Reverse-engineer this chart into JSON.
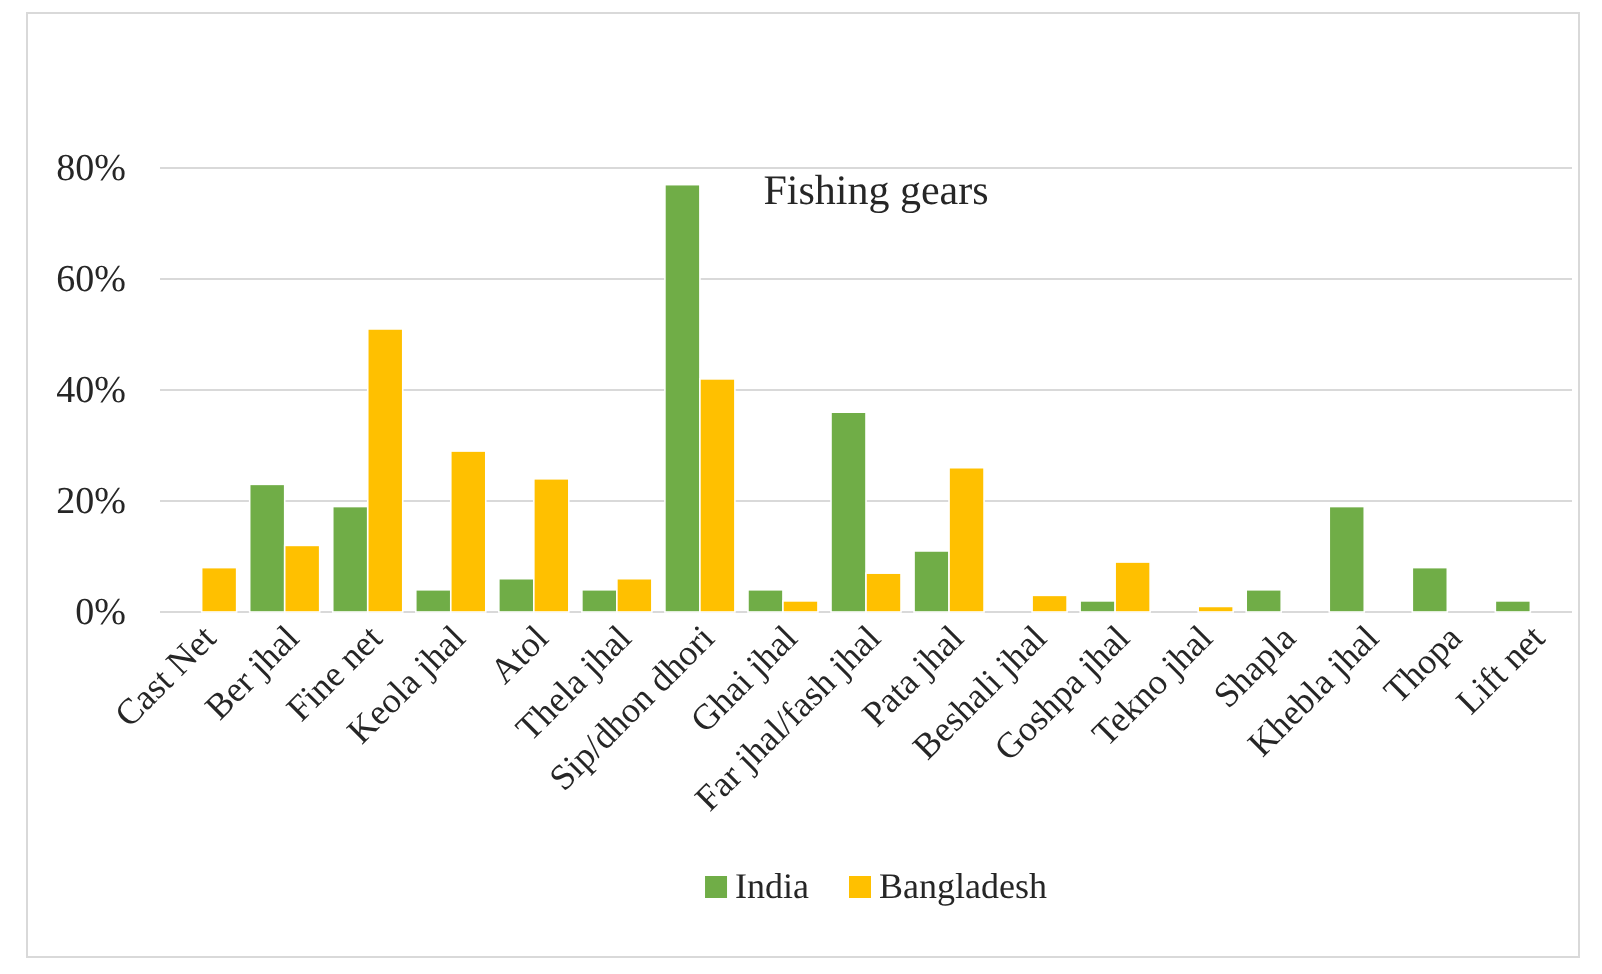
{
  "chart_data": {
    "type": "bar",
    "title": "Fishing gears",
    "categories": [
      "Cast Net",
      "Ber jhal",
      "Fine net",
      "Keola jhal",
      "Atol",
      "Thela jhal",
      "Sip/dhon dhori",
      "Ghai jhal",
      "Far jhal/fash jhal",
      "Pata jhal",
      "Beshali jhal",
      "Goshpa jhal",
      "Tekno jhal",
      "Shapla",
      "Khebla jhal",
      "Thopa",
      "Lift net"
    ],
    "series": [
      {
        "name": "India",
        "color": "#70ad47",
        "values": [
          null,
          23,
          19,
          4,
          6,
          4,
          77,
          4,
          36,
          11,
          null,
          2,
          null,
          4,
          19,
          8,
          2
        ]
      },
      {
        "name": "Bangladesh",
        "color": "#ffc000",
        "values": [
          8,
          12,
          51,
          29,
          24,
          6,
          42,
          2,
          7,
          26,
          3,
          9,
          1,
          null,
          null,
          null,
          null
        ]
      }
    ],
    "ylim": [
      0,
      80
    ],
    "yticks": [
      {
        "value": 0,
        "label": "0%"
      },
      {
        "value": 20,
        "label": "20%"
      },
      {
        "value": 40,
        "label": "40%"
      },
      {
        "value": 60,
        "label": "60%"
      },
      {
        "value": 80,
        "label": "80%"
      }
    ],
    "grid": "y",
    "legend": "bottom"
  }
}
